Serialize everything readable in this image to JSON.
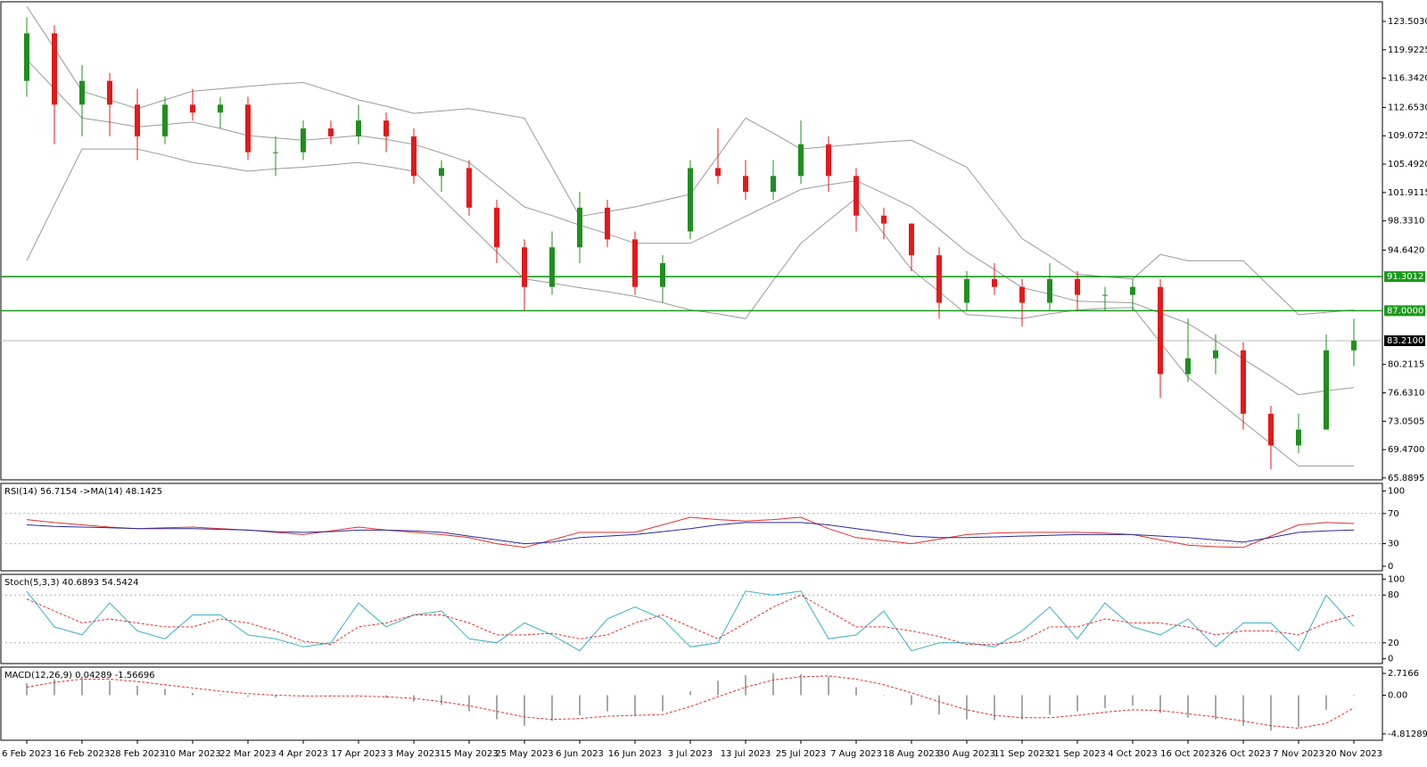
{
  "chart_data": [
    {
      "type": "candlestick",
      "categories": [
        "6 Feb 2023",
        null,
        "16 Feb 2023",
        null,
        "28 Feb 2023",
        null,
        "10 Mar 2023",
        null,
        "22 Mar 2023",
        null,
        "4 Apr 2023",
        null,
        "17 Apr 2023",
        null,
        "3 May 2023",
        null,
        "15 May 2023",
        null,
        "25 May 2023",
        null,
        "6 Jun 2023",
        null,
        "16 Jun 2023",
        null,
        "3 Jul 2023",
        null,
        "13 Jul 2023",
        null,
        "25 Jul 2023",
        null,
        "7 Aug 2023",
        null,
        "18 Aug 2023",
        null,
        "30 Aug 2023",
        null,
        "11 Sep 2023",
        null,
        "21 Sep 2023",
        null,
        "4 Oct 2023",
        null,
        "16 Oct 2023",
        null,
        "26 Oct 2023",
        null,
        "7 Nov 2023",
        null,
        "20 Nov 2023"
      ],
      "open": [
        116,
        122,
        113,
        116,
        113,
        109,
        113,
        112,
        113,
        107,
        107,
        110,
        109,
        111,
        109,
        104,
        105,
        100,
        95,
        90,
        95,
        100,
        96,
        90,
        97,
        105,
        104,
        102,
        104,
        108,
        104,
        99,
        98,
        94,
        88,
        91,
        90,
        88,
        91,
        89,
        89,
        90,
        79,
        81,
        82,
        74,
        70,
        72,
        82
      ],
      "high": [
        124,
        123,
        118,
        117,
        115,
        114,
        115,
        114,
        114,
        109,
        111,
        111,
        113,
        112,
        110,
        106,
        106,
        101,
        96,
        97,
        102,
        101,
        97,
        94,
        106,
        110,
        106,
        106,
        111,
        109,
        105,
        100,
        98,
        95,
        92,
        93,
        91,
        93,
        92,
        90,
        91,
        91,
        86,
        84,
        83,
        75,
        74,
        84,
        86
      ],
      "low": [
        114,
        108,
        109,
        109,
        106,
        108,
        111,
        110,
        106,
        104,
        106,
        108,
        108,
        107,
        103,
        102,
        99,
        93,
        87,
        89,
        93,
        95,
        89,
        88,
        96,
        103,
        101,
        101,
        103,
        102,
        97,
        96,
        92,
        86,
        87,
        89,
        85,
        87,
        87,
        87,
        87,
        76,
        78,
        79,
        72,
        67,
        69,
        72,
        80
      ],
      "close": [
        122,
        113,
        116,
        113,
        109,
        113,
        112,
        113,
        107,
        107,
        110,
        109,
        111,
        109,
        104,
        105,
        100,
        95,
        90,
        95,
        100,
        96,
        90,
        93,
        105,
        104,
        102,
        104,
        108,
        104,
        99,
        98,
        94,
        88,
        91,
        90,
        88,
        91,
        89,
        89,
        90,
        79,
        81,
        82,
        74,
        70,
        72,
        82,
        83.21
      ],
      "up_color": "#1f8f1f",
      "down_color": "#e31a1a",
      "bands": {
        "color": "#9a9a9a",
        "upper": [
          125.4,
          120.1,
          114.7,
          113.6,
          112.5,
          113.6,
          114.7,
          115,
          115.3,
          115.6,
          115.8,
          114.7,
          113.6,
          112.8,
          111.9,
          112.2,
          112.5,
          111.9,
          111.3,
          105.1,
          98.9,
          99.5,
          100.1,
          100.9,
          101.7,
          106.5,
          111.3,
          109.4,
          107.4,
          107.7,
          108,
          108.3,
          108.5,
          106.8,
          105.1,
          100.6,
          96.1,
          93.9,
          91.6,
          91.3,
          91,
          94.1,
          93.3,
          93.3,
          93.3,
          89.9,
          86.5,
          86.8,
          87.1
        ],
        "middle": [
          118.7,
          115,
          111.3,
          110.8,
          110.2,
          110.5,
          110.8,
          110,
          109.1,
          108.8,
          108.5,
          108.8,
          109.1,
          108.6,
          108,
          106.9,
          105.7,
          102.9,
          100.1,
          99,
          97.8,
          96.7,
          95.5,
          95.5,
          95.5,
          97.2,
          98.9,
          100.6,
          102.3,
          102.9,
          103.4,
          101.8,
          100.1,
          97.3,
          94.4,
          92.2,
          89.9,
          89.1,
          88.2,
          88.1,
          88,
          86.7,
          85.4,
          83.2,
          80.9,
          78.7,
          76.4,
          76.9,
          77.3
        ],
        "lower": [
          93.3,
          100.4,
          107.4,
          107.4,
          107.4,
          106.6,
          105.7,
          105.2,
          104.6,
          104.9,
          105.1,
          105.4,
          105.7,
          105.2,
          104.6,
          101.2,
          97.8,
          94.4,
          91,
          90.5,
          89.9,
          89.4,
          88.8,
          88,
          87.1,
          86.6,
          86,
          90.8,
          95.5,
          98.4,
          101.2,
          96.7,
          92.2,
          89.4,
          86.5,
          86.3,
          86,
          86.6,
          87.1,
          87.3,
          87.4,
          83,
          78.6,
          75.8,
          73,
          70.2,
          67.4,
          67.4,
          67.4
        ]
      },
      "levels": [
        91.3012,
        {
          "value": 87,
          "label": "87.0000"
        }
      ],
      "level_color": "#1a9a1a",
      "last": {
        "value": 83.21,
        "label": "83.2100"
      },
      "ylim": [
        65.66,
        125.98
      ],
      "yticks": [
        {
          "value": 123.503,
          "label": "123.5030"
        },
        119.9225,
        {
          "value": 116.342,
          "label": "116.3420"
        },
        {
          "value": 112.653,
          "label": "112.6530"
        },
        109.0725,
        {
          "value": 105.492,
          "label": "105.4920"
        },
        101.9115,
        {
          "value": 98.331,
          "label": "98.3310"
        },
        {
          "value": 94.642,
          "label": "94.6420"
        },
        80.2115,
        {
          "value": 76.631,
          "label": "76.6310"
        },
        73.0505,
        {
          "value": 69.47,
          "label": "69.4700"
        },
        65.8895
      ]
    },
    {
      "type": "line",
      "title": "RSI(14) 56.7154 ->MA(14) 48.1425",
      "series": [
        {
          "color": "#e03030",
          "values": [
            62,
            58,
            55,
            52,
            50,
            51,
            52,
            50,
            48,
            45,
            42,
            47,
            52,
            48,
            45,
            42,
            38,
            30,
            25,
            35,
            45,
            45,
            45,
            55,
            65,
            62,
            60,
            62,
            65,
            50,
            38,
            34,
            30,
            36,
            42,
            44,
            45,
            45,
            45,
            44,
            42,
            35,
            28,
            26,
            25,
            40,
            55,
            58,
            56.7154
          ]
        },
        {
          "color": "#2a2a9a",
          "values": [
            55,
            53,
            52,
            51,
            50,
            50,
            50,
            49,
            48,
            46,
            45,
            46,
            48,
            48,
            47,
            45,
            40,
            35,
            30,
            32,
            38,
            40,
            42,
            46,
            50,
            55,
            58,
            58,
            58,
            55,
            50,
            45,
            40,
            38,
            38,
            39,
            40,
            41,
            42,
            42,
            42,
            40,
            38,
            35,
            32,
            38,
            45,
            47,
            48.1425
          ]
        }
      ],
      "ylim": [
        -6,
        110
      ],
      "yticks": [
        100,
        70,
        30,
        0
      ],
      "levels": [
        70,
        30
      ]
    },
    {
      "type": "line",
      "title": "Stoch(5,3,3) 40.6893 54.5424",
      "series": [
        {
          "color": "#3cb0c4",
          "values": [
            85,
            40,
            30,
            70,
            35,
            25,
            55,
            55,
            30,
            25,
            15,
            20,
            70,
            40,
            55,
            60,
            25,
            20,
            45,
            30,
            10,
            50,
            65,
            50,
            15,
            20,
            85,
            80,
            85,
            25,
            30,
            60,
            10,
            20,
            20,
            15,
            35,
            65,
            25,
            70,
            40,
            30,
            50,
            15,
            45,
            45,
            10,
            80,
            40.6893
          ]
        },
        {
          "color": "#e03030",
          "dash": true,
          "values": [
            75,
            60,
            45,
            50,
            45,
            40,
            40,
            50,
            45,
            35,
            22,
            18,
            40,
            45,
            55,
            55,
            45,
            30,
            30,
            32,
            25,
            30,
            45,
            55,
            40,
            25,
            45,
            65,
            80,
            60,
            40,
            40,
            35,
            28,
            18,
            18,
            22,
            40,
            40,
            50,
            45,
            45,
            40,
            30,
            35,
            35,
            30,
            45,
            54.5424
          ]
        }
      ],
      "ylim": [
        -6,
        106
      ],
      "yticks": [
        100,
        80,
        20,
        0
      ],
      "levels": [
        80,
        20
      ]
    },
    {
      "type": "combo",
      "title": "MACD(12,26,9) 0.04289 -1.56696",
      "series": [
        {
          "type": "bar",
          "color": "#a8a8a8",
          "values": [
            1.5,
            2.0,
            2.2,
            1.8,
            1.2,
            0.8,
            0.3,
            0.1,
            -0.2,
            -0.3,
            -0.1,
            0,
            0,
            -0.3,
            -0.8,
            -1.2,
            -2.0,
            -3.0,
            -3.8,
            -3.2,
            -2.5,
            -2.0,
            -2.6,
            -2.0,
            0.5,
            1.8,
            2.5,
            2.7,
            2.6,
            2.3,
            1.0,
            0,
            -1.2,
            -2.4,
            -3.0,
            -3.1,
            -3.0,
            -2.4,
            -2.0,
            -1.6,
            -1.3,
            -2.2,
            -2.8,
            -3.0,
            -3.8,
            -4.4,
            -4.0,
            -1.8,
            0.04289
          ]
        },
        {
          "type": "line",
          "color": "#e03030",
          "dash": true,
          "values": [
            1.0,
            1.6,
            2.0,
            2.0,
            1.7,
            1.3,
            0.9,
            0.5,
            0.2,
            0,
            -0.1,
            -0.1,
            -0.1,
            -0.2,
            -0.4,
            -0.8,
            -1.3,
            -2.0,
            -2.7,
            -3.0,
            -2.9,
            -2.6,
            -2.5,
            -2.4,
            -1.4,
            -0.2,
            1.0,
            1.9,
            2.3,
            2.4,
            2.0,
            1.3,
            0.3,
            -0.8,
            -1.8,
            -2.5,
            -2.8,
            -2.8,
            -2.5,
            -2.1,
            -1.8,
            -1.9,
            -2.3,
            -2.7,
            -3.2,
            -3.8,
            -4.1,
            -3.5,
            -1.56696
          ]
        }
      ],
      "ylim": [
        -5.6,
        3.5
      ],
      "yticks": [
        2.7166,
        {
          "value": 0,
          "label": "0.00"
        },
        -4.81289
      ]
    }
  ]
}
